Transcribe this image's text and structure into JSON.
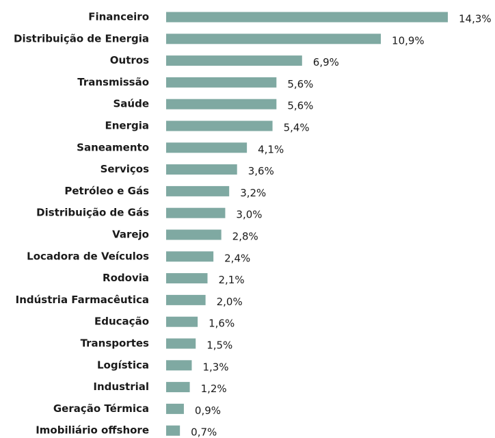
{
  "chart_data": {
    "type": "bar",
    "orientation": "horizontal",
    "color": "#7fa9a2",
    "categories": [
      "Financeiro",
      "Distribuição de Energia",
      "Outros",
      "Transmissão",
      "Saúde",
      "Energia",
      "Saneamento",
      "Serviços",
      "Petróleo e Gás",
      "Distribuição de Gás",
      "Varejo",
      "Locadora de Veículos",
      "Rodovia",
      "Indústria Farmacêutica",
      "Educação",
      "Transportes",
      "Logística",
      "Industrial",
      "Geração Térmica",
      "Imobiliário offshore"
    ],
    "values": [
      14.3,
      10.9,
      6.9,
      5.6,
      5.6,
      5.4,
      4.1,
      3.6,
      3.2,
      3.0,
      2.8,
      2.4,
      2.1,
      2.0,
      1.6,
      1.5,
      1.3,
      1.2,
      0.9,
      0.7
    ],
    "value_labels": [
      "14,3%",
      "10,9%",
      "6,9%",
      "5,6%",
      "5,6%",
      "5,4%",
      "4,1%",
      "3,6%",
      "3,2%",
      "3,0%",
      "2,8%",
      "2,4%",
      "2,1%",
      "2,0%",
      "1,6%",
      "1,5%",
      "1,3%",
      "1,2%",
      "0,9%",
      "0,7%"
    ]
  }
}
